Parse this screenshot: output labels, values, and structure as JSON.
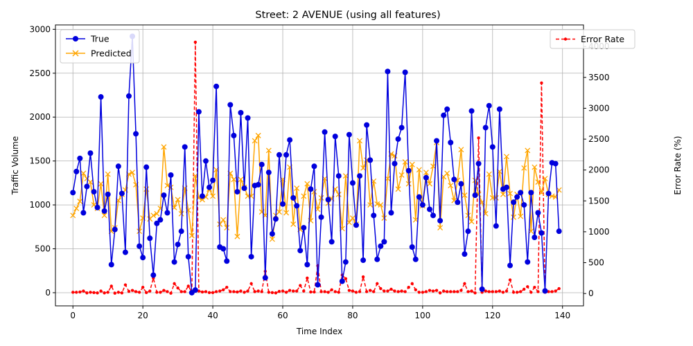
{
  "chart_data": {
    "type": "line",
    "title": "Street: 2 AVENUE (using all features)",
    "xlabel": "Time Index",
    "ylabel": "Traffic Volume",
    "ylabel_right": "Error Rate (%)",
    "xlim": [
      -5,
      146
    ],
    "ylim": [
      -150,
      3050
    ],
    "ylim_right": [
      -200,
      4350
    ],
    "xticks": [
      0,
      20,
      40,
      60,
      80,
      100,
      120,
      140
    ],
    "yticks": [
      0,
      500,
      1000,
      1500,
      2000,
      2500,
      3000
    ],
    "yticks_right": [
      0,
      500,
      1000,
      1500,
      2000,
      2500,
      3000,
      3500,
      4000
    ],
    "grid": true,
    "legend_left_position": "upper-left",
    "legend_right_position": "upper-right",
    "x": [
      0,
      1,
      2,
      3,
      4,
      5,
      6,
      7,
      8,
      9,
      10,
      11,
      12,
      13,
      14,
      15,
      16,
      17,
      18,
      19,
      20,
      21,
      22,
      23,
      24,
      25,
      26,
      27,
      28,
      29,
      30,
      31,
      32,
      33,
      34,
      35,
      36,
      37,
      38,
      39,
      40,
      41,
      42,
      43,
      44,
      45,
      46,
      47,
      48,
      49,
      50,
      51,
      52,
      53,
      54,
      55,
      56,
      57,
      58,
      59,
      60,
      61,
      62,
      63,
      64,
      65,
      66,
      67,
      68,
      69,
      70,
      71,
      72,
      73,
      74,
      75,
      76,
      77,
      78,
      79,
      80,
      81,
      82,
      83,
      84,
      85,
      86,
      87,
      88,
      89,
      90,
      91,
      92,
      93,
      94,
      95,
      96,
      97,
      98,
      99,
      100,
      101,
      102,
      103,
      104,
      105,
      106,
      107,
      108,
      109,
      110,
      111,
      112,
      113,
      114,
      115,
      116,
      117,
      118,
      119,
      120,
      121,
      122,
      123,
      124,
      125,
      126,
      127,
      128,
      129,
      130,
      131,
      132,
      133,
      134,
      135,
      136,
      137,
      138,
      139
    ],
    "series": [
      {
        "name": "True",
        "axis": "left",
        "color": "#0000dd",
        "marker": "circle",
        "values": [
          1140,
          1380,
          1530,
          910,
          1210,
          1590,
          1150,
          970,
          2230,
          930,
          1120,
          320,
          720,
          1440,
          1130,
          460,
          2240,
          2920,
          1810,
          530,
          400,
          1430,
          620,
          200,
          790,
          830,
          1110,
          910,
          1340,
          350,
          550,
          700,
          1660,
          410,
          0,
          30,
          2060,
          1100,
          1500,
          1200,
          1280,
          2350,
          520,
          500,
          360,
          2140,
          1790,
          1150,
          2050,
          1190,
          1990,
          410,
          1220,
          1230,
          1460,
          170,
          1370,
          670,
          840,
          1570,
          1010,
          1570,
          1740,
          1080,
          990,
          480,
          740,
          320,
          1180,
          1440,
          90,
          860,
          1830,
          1060,
          580,
          1780,
          1330,
          130,
          350,
          1800,
          1250,
          770,
          1330,
          370,
          1910,
          1510,
          880,
          380,
          530,
          580,
          2520,
          910,
          1470,
          1750,
          1880,
          2510,
          1390,
          520,
          380,
          1090,
          1000,
          1310,
          950,
          880,
          1730,
          820,
          2020,
          2090,
          1710,
          1290,
          1030,
          1240,
          440,
          700,
          2070,
          1110,
          1470,
          40,
          1880,
          2130,
          1660,
          760,
          2090,
          1180,
          1200,
          310,
          1030,
          1090,
          1140,
          1000,
          350,
          1140,
          630,
          910,
          680,
          20,
          1130,
          1480,
          1470,
          700
        ]
      },
      {
        "name": "Predicted",
        "axis": "left",
        "color": "#ffa500",
        "marker": "x",
        "values": [
          880,
          960,
          1040,
          1360,
          1300,
          1260,
          1000,
          960,
          1240,
          880,
          1350,
          700,
          740,
          1050,
          1120,
          1170,
          1350,
          1370,
          1230,
          700,
          850,
          1180,
          840,
          880,
          900,
          960,
          1660,
          1220,
          1200,
          970,
          1060,
          900,
          1190,
          940,
          650,
          1330,
          1080,
          1060,
          1090,
          1180,
          1100,
          1400,
          780,
          830,
          740,
          1360,
          1290,
          640,
          1290,
          1200,
          1100,
          1100,
          1730,
          1790,
          920,
          880,
          1620,
          610,
          880,
          920,
          1290,
          910,
          1430,
          780,
          1190,
          720,
          1100,
          1240,
          820,
          1150,
          950,
          1080,
          1300,
          1020,
          1070,
          1180,
          1120,
          730,
          1330,
          800,
          850,
          780,
          1730,
          1420,
          1510,
          1000,
          1270,
          1010,
          1000,
          850,
          1300,
          1580,
          1560,
          1180,
          1340,
          1490,
          1240,
          1460,
          830,
          1400,
          990,
          1370,
          1240,
          1440,
          1710,
          740,
          1320,
          1360,
          1220,
          1050,
          1280,
          1630,
          1110,
          880,
          810,
          1280,
          1120,
          1030,
          900,
          1350,
          1080,
          1080,
          1380,
          1120,
          1550,
          1130,
          860,
          1120,
          870,
          1420,
          1620,
          700,
          1430,
          1260,
          1140,
          1300,
          1120,
          1100,
          1090,
          1170
        ]
      },
      {
        "name": "Error Rate",
        "axis": "right",
        "color": "#ff0000",
        "marker": "dot",
        "dashed": true,
        "values": [
          20,
          20,
          25,
          40,
          10,
          20,
          15,
          10,
          40,
          10,
          20,
          120,
          5,
          20,
          10,
          140,
          35,
          50,
          30,
          20,
          100,
          15,
          40,
          250,
          20,
          20,
          50,
          30,
          5,
          160,
          90,
          30,
          30,
          120,
          20,
          4070,
          40,
          25,
          30,
          15,
          15,
          30,
          40,
          60,
          100,
          30,
          30,
          25,
          40,
          20,
          40,
          160,
          30,
          40,
          30,
          360,
          20,
          15,
          10,
          35,
          40,
          20,
          50,
          40,
          40,
          130,
          40,
          250,
          25,
          25,
          450,
          30,
          30,
          20,
          60,
          30,
          20,
          300,
          240,
          50,
          40,
          20,
          30,
          270,
          30,
          50,
          30,
          160,
          80,
          40,
          40,
          70,
          40,
          30,
          40,
          30,
          100,
          160,
          60,
          20,
          20,
          30,
          50,
          40,
          50,
          10,
          40,
          30,
          30,
          30,
          30,
          50,
          160,
          30,
          40,
          10,
          2520,
          20,
          40,
          30,
          30,
          30,
          40,
          20,
          40,
          220,
          20,
          20,
          30,
          70,
          110,
          20,
          100,
          30,
          3410,
          20,
          30,
          30,
          40,
          80
        ]
      }
    ]
  }
}
